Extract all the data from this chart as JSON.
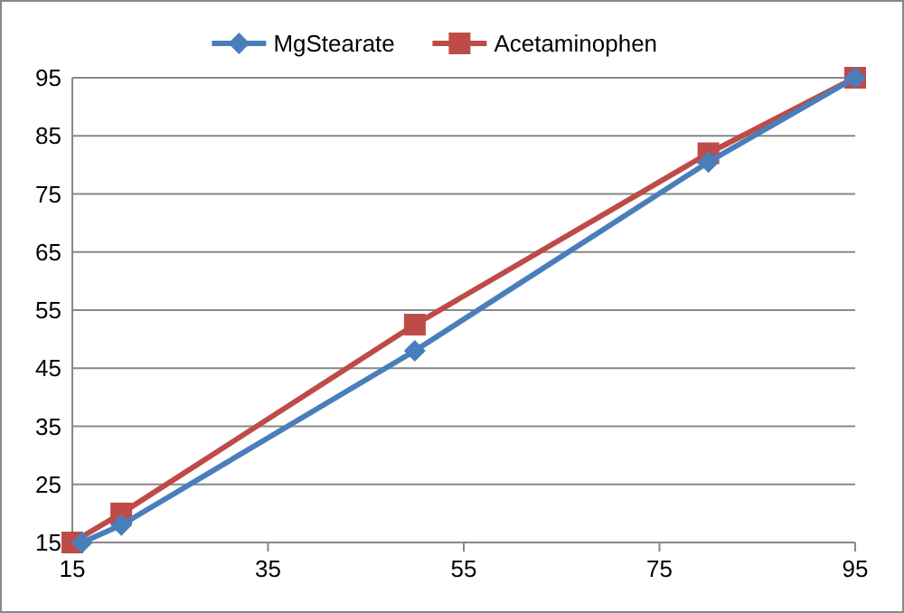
{
  "chart_data": {
    "type": "line",
    "xlim": [
      15,
      95
    ],
    "xticks": [
      15,
      35,
      55,
      75,
      95
    ],
    "ylim": [
      15,
      95
    ],
    "yticks": [
      15,
      25,
      35,
      45,
      55,
      65,
      75,
      85,
      95
    ],
    "grid": "y",
    "legend": "top",
    "line_style": "solid",
    "series": [
      {
        "name": "MgStearate",
        "color": "#4a7ebb",
        "marker": "diamond",
        "x": [
          16,
          20,
          50,
          80,
          95
        ],
        "values": [
          15,
          18,
          48,
          80.5,
          95
        ]
      },
      {
        "name": "Acetaminophen",
        "color": "#be4b48",
        "marker": "square",
        "x": [
          15,
          20,
          50,
          80,
          95
        ],
        "values": [
          15,
          20,
          52.5,
          82,
          95
        ]
      }
    ]
  }
}
